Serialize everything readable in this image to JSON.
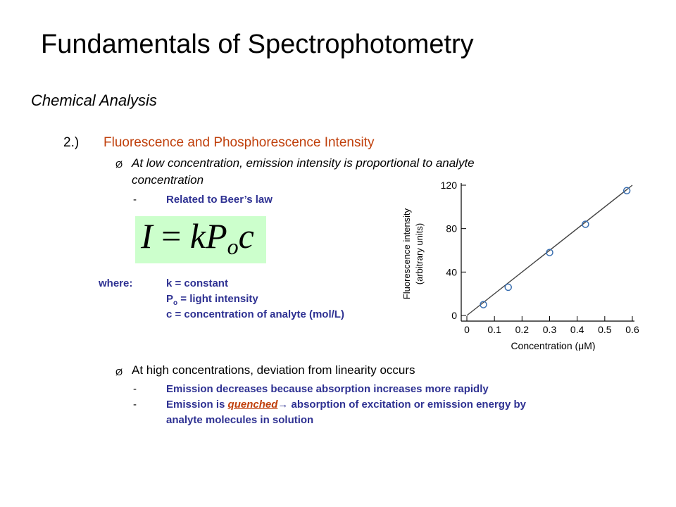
{
  "slide": {
    "title": "Fundamentals of Spectrophotometry",
    "subtitle": "Chemical Analysis",
    "item_number": "2.)",
    "item_title": "Fluorescence and Phosphorescence Intensity",
    "bullet_glyph": "Ø",
    "bullet1_line1": "At low concentration, emission intensity is proportional to analyte",
    "bullet1_line2": "concentration",
    "dash": "-",
    "related": "Related to Beer’s law",
    "equation": {
      "I": "I",
      "eq": " = ",
      "k": "k",
      "P": "P",
      "o": "o",
      "c": "c"
    },
    "where_label": "where:",
    "where_k": "k = constant",
    "where_p_main": "P",
    "where_p_sub": "o",
    "where_p_rest": " = light intensity",
    "where_c": "c = concentration of analyte (mol/L)",
    "bullet2": "At high concentrations, deviation from linearity occurs",
    "dev1": "Emission decreases because absorption increases more rapidly",
    "dev2_pre": "Emission is ",
    "dev2_quenched": "quenched",
    "dev2_arrow": "→",
    "dev2_post": " absorption of excitation or emission energy by",
    "dev2_line2": "analyte molecules in solution",
    "colors": {
      "accent": "#c0400c",
      "blue": "#2e3192",
      "eq_bg": "#ccffcc"
    }
  },
  "chart_data": {
    "type": "scatter",
    "xlabel": "Concentration (μM)",
    "ylabel_line1": "Fluorescence intensity",
    "ylabel_line2": "(arbitrary units)",
    "xlim": [
      0,
      0.6
    ],
    "ylim": [
      0,
      120
    ],
    "xticks": [
      "0",
      "0.1",
      "0.2",
      "0.3",
      "0.4",
      "0.5",
      "0.6"
    ],
    "yticks": [
      "0",
      "40",
      "80",
      "120"
    ],
    "points": [
      {
        "x": 0.06,
        "y": 10
      },
      {
        "x": 0.15,
        "y": 26
      },
      {
        "x": 0.3,
        "y": 58
      },
      {
        "x": 0.43,
        "y": 84
      },
      {
        "x": 0.58,
        "y": 115
      }
    ],
    "fit_line": [
      {
        "x": 0.0,
        "y": 0
      },
      {
        "x": 0.6,
        "y": 120
      }
    ],
    "marker_color": "#3a6fb0",
    "line_color": "#444444"
  }
}
